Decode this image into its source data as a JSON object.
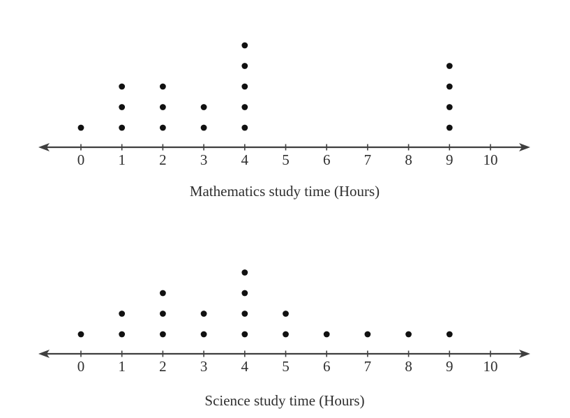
{
  "colors": {
    "background": "#ffffff",
    "dot": "#111111",
    "axis": "#3f3f3f",
    "tick": "#3f3f3f",
    "text": "#2e2e2e"
  },
  "chart_data": [
    {
      "type": "dot_plot",
      "title": "Mathematics study time (Hours)",
      "xlabel": "Mathematics study time (Hours)",
      "categories": [
        0,
        1,
        2,
        3,
        4,
        5,
        6,
        7,
        8,
        9,
        10
      ],
      "values": [
        1,
        3,
        3,
        2,
        5,
        0,
        0,
        0,
        0,
        4,
        0
      ],
      "observations": [
        0,
        1,
        1,
        1,
        2,
        2,
        2,
        3,
        3,
        4,
        4,
        4,
        4,
        4,
        9,
        9,
        9,
        9
      ],
      "total_observations": 18,
      "axis": {
        "min": 0,
        "max": 10,
        "tick_labels": [
          "0",
          "1",
          "2",
          "3",
          "4",
          "5",
          "6",
          "7",
          "8",
          "9",
          "10"
        ],
        "arrows_both_ends": true
      }
    },
    {
      "type": "dot_plot",
      "title": "Science study time (Hours)",
      "xlabel": "Science study time (Hours)",
      "categories": [
        0,
        1,
        2,
        3,
        4,
        5,
        6,
        7,
        8,
        9,
        10
      ],
      "values": [
        1,
        2,
        3,
        2,
        4,
        2,
        1,
        1,
        1,
        1,
        0
      ],
      "observations": [
        0,
        1,
        1,
        2,
        2,
        2,
        3,
        3,
        4,
        4,
        4,
        4,
        5,
        5,
        6,
        7,
        8,
        9
      ],
      "total_observations": 18,
      "axis": {
        "min": 0,
        "max": 10,
        "tick_labels": [
          "0",
          "1",
          "2",
          "3",
          "4",
          "5",
          "6",
          "7",
          "8",
          "9",
          "10"
        ],
        "arrows_both_ends": true
      }
    }
  ]
}
